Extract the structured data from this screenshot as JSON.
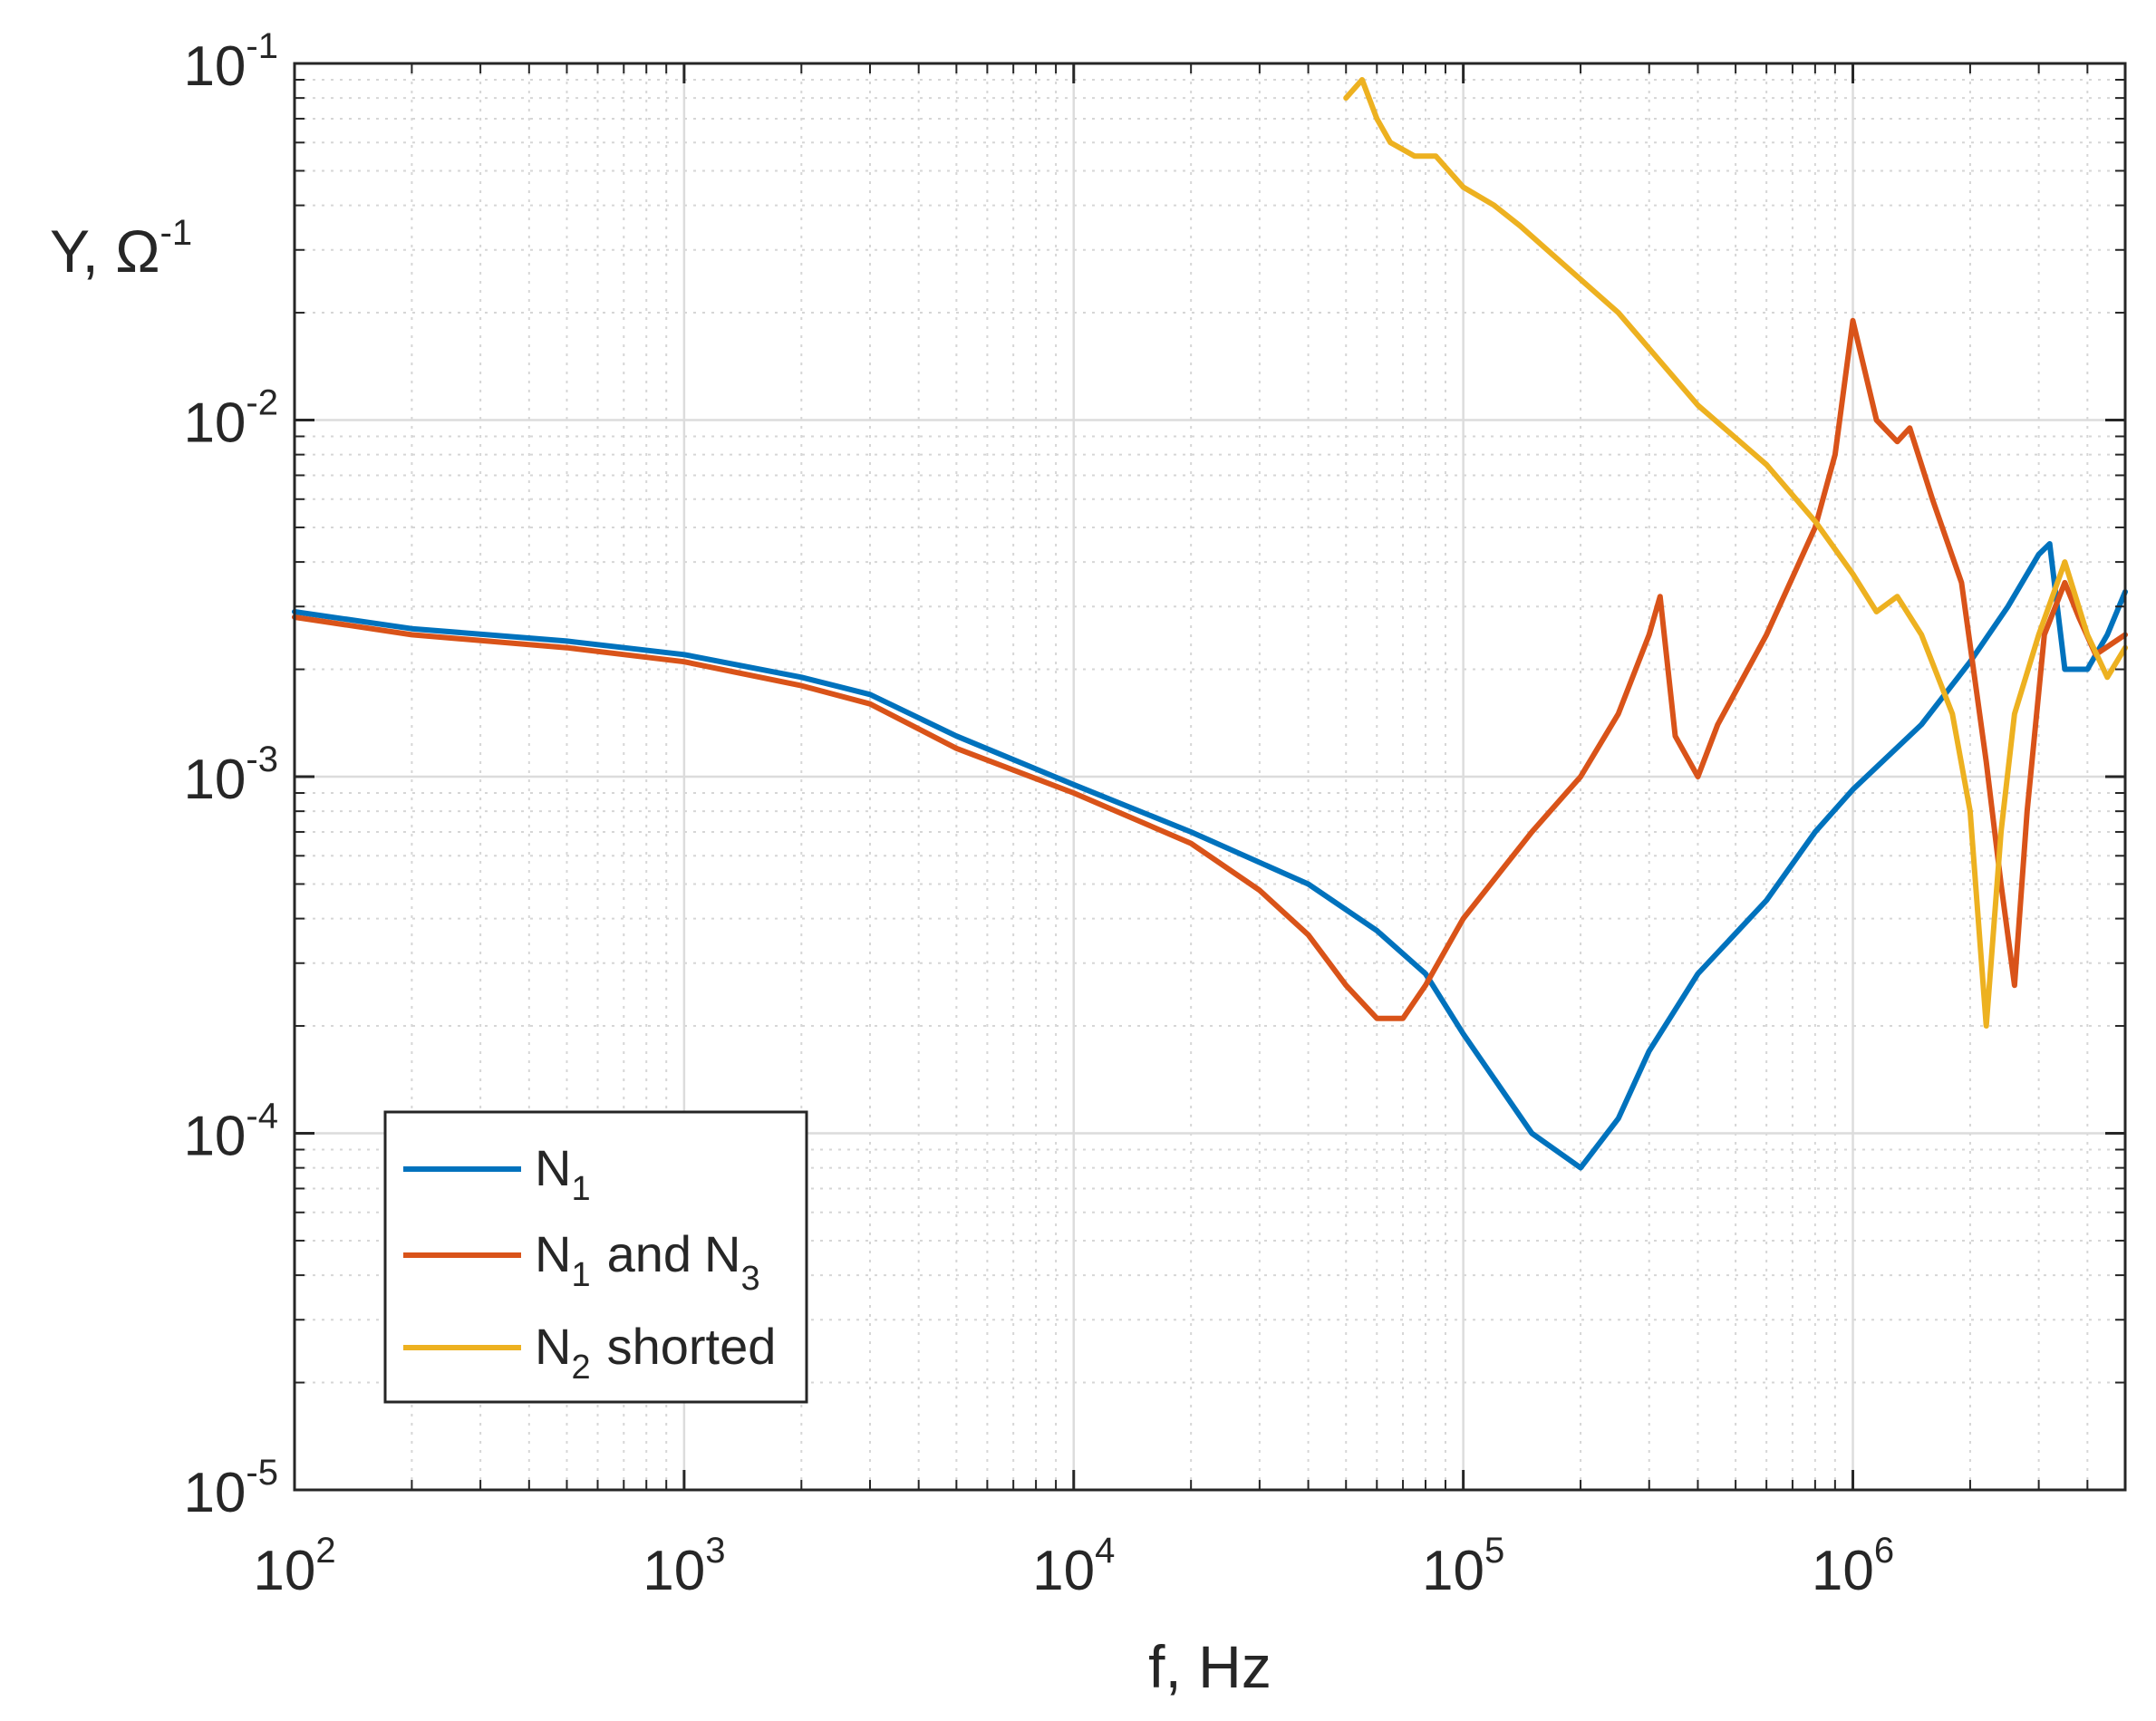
{
  "chart_data": {
    "type": "line",
    "title": "",
    "xlabel": "f, Hz",
    "ylabel": "Y, Ω-1",
    "ylabel_base": "Y, Ω",
    "ylabel_exp": "-1",
    "x_scale": "log",
    "y_scale": "log",
    "xlim": [
      100,
      5000000
    ],
    "ylim": [
      1e-05,
      0.1
    ],
    "grid": true,
    "minor_grid": true,
    "x_ticks": [
      {
        "value": 100,
        "base": "10",
        "exp": "2"
      },
      {
        "value": 1000,
        "base": "10",
        "exp": "3"
      },
      {
        "value": 10000,
        "base": "10",
        "exp": "4"
      },
      {
        "value": 100000,
        "base": "10",
        "exp": "5"
      },
      {
        "value": 1000000,
        "base": "10",
        "exp": "6"
      }
    ],
    "y_ticks": [
      {
        "value": 1e-05,
        "base": "10",
        "exp": "-5"
      },
      {
        "value": 0.0001,
        "base": "10",
        "exp": "-4"
      },
      {
        "value": 0.001,
        "base": "10",
        "exp": "-3"
      },
      {
        "value": 0.01,
        "base": "10",
        "exp": "-2"
      },
      {
        "value": 0.1,
        "base": "10",
        "exp": "-1"
      }
    ],
    "legend_position": "bottom-left",
    "series": [
      {
        "name": "N1",
        "label": {
          "main": "N",
          "sub": "1"
        },
        "color": "#0072BD",
        "points": [
          [
            100,
            0.0029
          ],
          [
            200,
            0.0026
          ],
          [
            500,
            0.0024
          ],
          [
            1000,
            0.0022
          ],
          [
            2000,
            0.0019
          ],
          [
            3000,
            0.0017
          ],
          [
            5000,
            0.0013
          ],
          [
            10000,
            0.00095
          ],
          [
            20000,
            0.0007
          ],
          [
            40000,
            0.0005
          ],
          [
            60000,
            0.00037
          ],
          [
            80000,
            0.00028
          ],
          [
            100000,
            0.00019
          ],
          [
            150000,
            0.0001
          ],
          [
            200000,
            8e-05
          ],
          [
            250000,
            0.00011
          ],
          [
            300000,
            0.00017
          ],
          [
            400000,
            0.00028
          ],
          [
            600000,
            0.00045
          ],
          [
            800000,
            0.0007
          ],
          [
            1000000,
            0.00092
          ],
          [
            1500000,
            0.0014
          ],
          [
            2000000,
            0.0021
          ],
          [
            2500000,
            0.003
          ],
          [
            3000000,
            0.0042
          ],
          [
            3200000,
            0.0045
          ],
          [
            3500000,
            0.002
          ],
          [
            4000000,
            0.002
          ],
          [
            4500000,
            0.0025
          ],
          [
            5000000,
            0.0033
          ]
        ]
      },
      {
        "name": "N1 and N3",
        "label": {
          "main": "N",
          "sub": "1",
          "middle": "and",
          "main2": "N",
          "sub2": "3"
        },
        "color": "#D95319",
        "points": [
          [
            100,
            0.0028
          ],
          [
            200,
            0.0025
          ],
          [
            500,
            0.0023
          ],
          [
            1000,
            0.0021
          ],
          [
            2000,
            0.0018
          ],
          [
            3000,
            0.0016
          ],
          [
            5000,
            0.0012
          ],
          [
            10000,
            0.0009
          ],
          [
            20000,
            0.00065
          ],
          [
            30000,
            0.00048
          ],
          [
            40000,
            0.00036
          ],
          [
            50000,
            0.00026
          ],
          [
            60000,
            0.00021
          ],
          [
            70000,
            0.00021
          ],
          [
            80000,
            0.00026
          ],
          [
            100000,
            0.0004
          ],
          [
            150000,
            0.0007
          ],
          [
            200000,
            0.001
          ],
          [
            250000,
            0.0015
          ],
          [
            300000,
            0.0025
          ],
          [
            320000,
            0.0032
          ],
          [
            350000,
            0.0013
          ],
          [
            400000,
            0.001
          ],
          [
            450000,
            0.0014
          ],
          [
            600000,
            0.0025
          ],
          [
            800000,
            0.005
          ],
          [
            900000,
            0.008
          ],
          [
            1000000,
            0.019
          ],
          [
            1150000,
            0.01
          ],
          [
            1300000,
            0.0087
          ],
          [
            1400000,
            0.0095
          ],
          [
            1600000,
            0.006
          ],
          [
            1900000,
            0.0035
          ],
          [
            2200000,
            0.0011
          ],
          [
            2400000,
            0.0005
          ],
          [
            2600000,
            0.00026
          ],
          [
            2800000,
            0.0008
          ],
          [
            3100000,
            0.0025
          ],
          [
            3500000,
            0.0035
          ],
          [
            3800000,
            0.0028
          ],
          [
            4200000,
            0.0022
          ],
          [
            5000000,
            0.0025
          ]
        ]
      },
      {
        "name": "N2 shorted",
        "label": {
          "main": "N",
          "sub": "2",
          "after": "shorted"
        },
        "color": "#EDB120",
        "points": [
          [
            50000,
            0.08
          ],
          [
            55000,
            0.09
          ],
          [
            60000,
            0.07
          ],
          [
            65000,
            0.06
          ],
          [
            75000,
            0.055
          ],
          [
            85000,
            0.055
          ],
          [
            100000,
            0.045
          ],
          [
            120000,
            0.04
          ],
          [
            140000,
            0.035
          ],
          [
            170000,
            0.029
          ],
          [
            250000,
            0.02
          ],
          [
            400000,
            0.011
          ],
          [
            600000,
            0.0075
          ],
          [
            800000,
            0.0052
          ],
          [
            1000000,
            0.0037
          ],
          [
            1150000,
            0.0029
          ],
          [
            1300000,
            0.0032
          ],
          [
            1500000,
            0.0025
          ],
          [
            1800000,
            0.0015
          ],
          [
            2000000,
            0.0008
          ],
          [
            2200000,
            0.0002
          ],
          [
            2400000,
            0.0007
          ],
          [
            2600000,
            0.0015
          ],
          [
            3000000,
            0.0025
          ],
          [
            3500000,
            0.004
          ],
          [
            4000000,
            0.0025
          ],
          [
            4500000,
            0.0019
          ],
          [
            5000000,
            0.0023
          ]
        ]
      }
    ]
  }
}
